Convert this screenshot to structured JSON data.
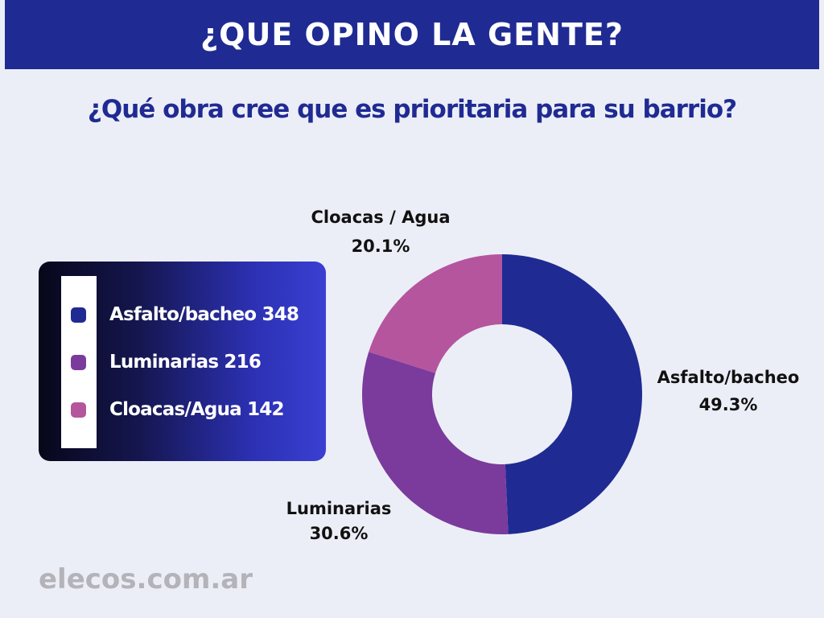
{
  "header": {
    "title": "¿QUE OPINO LA GENTE?"
  },
  "question": "¿Qué obra cree que es prioritaria para su barrio?",
  "legend": {
    "items": [
      {
        "label": "Asfalto/bacheo 348",
        "color": "#1f2b92"
      },
      {
        "label": "Luminarias 216",
        "color": "#7a3b9c"
      },
      {
        "label": "Cloacas/Agua 142",
        "color": "#b4559e"
      }
    ]
  },
  "chart_data": {
    "type": "pie",
    "donut": true,
    "slices": [
      {
        "name": "Asfalto/bacheo",
        "value": 49.3,
        "count": 348,
        "label": "Asfalto/bacheo",
        "pct_label": "49.3%",
        "color": "#1f2b92"
      },
      {
        "name": "Luminarias",
        "value": 30.6,
        "count": 216,
        "label": "Luminarias",
        "pct_label": "30.6%",
        "color": "#7a3b9c"
      },
      {
        "name": "Cloacas/Agua",
        "value": 20.1,
        "count": 142,
        "label": "Cloacas / Agua",
        "pct_label": "20.1%",
        "color": "#b4559e"
      }
    ]
  },
  "footer": {
    "site": "elecos.com.ar"
  }
}
